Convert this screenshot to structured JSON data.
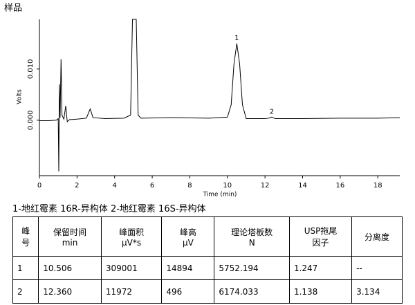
{
  "chart_data": {
    "type": "line",
    "title": "样品",
    "xlabel": "Time (min)",
    "ylabel": "Volts",
    "xlim": [
      0,
      19.17
    ],
    "xticks": [
      0,
      2,
      4,
      6,
      8,
      10,
      12,
      14,
      16,
      18
    ],
    "ylim": [
      -0.0103,
      0.0197
    ],
    "yticks": [
      {
        "value": 0,
        "label": "0.000"
      },
      {
        "value": 0.01,
        "label": "0.010"
      }
    ],
    "series": [
      {
        "color": "#000000",
        "x": [
          0,
          0.5,
          0.9,
          1.0,
          1.03,
          1.06,
          1.1,
          1.15,
          1.2,
          1.3,
          1.4,
          1.48,
          1.6,
          2.0,
          2.5,
          2.7,
          2.85,
          3.5,
          4.5,
          4.85,
          4.95,
          5.15,
          5.25,
          5.4,
          7,
          9,
          10,
          10.2,
          10.35,
          10.5,
          10.65,
          10.8,
          11.0,
          12.0,
          12.2,
          12.36,
          12.55,
          14,
          16,
          18,
          19.17
        ],
        "values": [
          -0.0001,
          -0.0001,
          0,
          0.0003,
          -0.01,
          0.007,
          0.0005,
          0.0119,
          0.001,
          0.0002,
          0.0028,
          -0.0003,
          0.0001,
          0.0002,
          0.0004,
          0.0022,
          0.0005,
          0.0003,
          0.0004,
          0.001,
          0.0197,
          0.0197,
          0.001,
          0.0004,
          0.0005,
          0.0004,
          0.0006,
          0.003,
          0.011,
          0.015,
          0.011,
          0.003,
          0.0003,
          0.0003,
          0.0004,
          0.0006,
          0.0003,
          0.0003,
          0.0004,
          0.0004,
          0.0005
        ]
      }
    ],
    "annotations": [
      {
        "text": "1",
        "x": 10.5,
        "y": 0.015
      },
      {
        "text": "2",
        "x": 12.36,
        "y": 0.0006
      }
    ]
  },
  "caption": "1-地红霉素 16R-异构体 2-地红霉素 16S-异构体",
  "table": {
    "header": [
      [
        "峰",
        "号"
      ],
      [
        "保留时间",
        "min"
      ],
      [
        "峰面积",
        "μV*s"
      ],
      [
        "峰高",
        "μV"
      ],
      [
        "理论塔板数",
        "N"
      ],
      [
        "USP拖尾",
        "因子"
      ],
      [
        "分离度"
      ]
    ],
    "rows": [
      [
        "1",
        "10.506",
        "309001",
        "14894",
        "5752.194",
        "1.247",
        "--"
      ],
      [
        "2",
        "12.360",
        "11972",
        "496",
        "6174.033",
        "1.138",
        "3.134"
      ]
    ]
  }
}
